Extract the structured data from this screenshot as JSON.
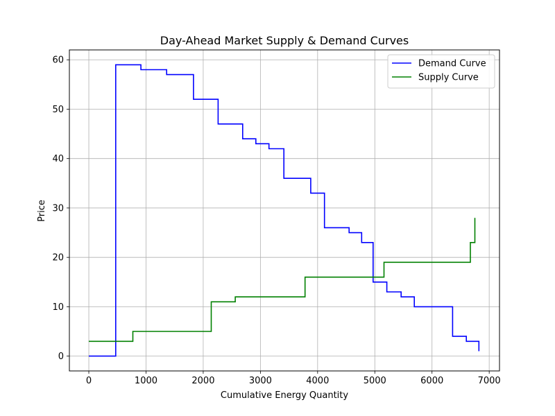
{
  "chart_data": {
    "type": "line",
    "subtype": "step",
    "title": "Day-Ahead Market Supply & Demand Curves",
    "xlabel": "Cumulative Energy Quantity",
    "ylabel": "Price",
    "xlim": [
      -340,
      7180
    ],
    "ylim": [
      -3,
      62
    ],
    "xticks": [
      0,
      1000,
      2000,
      3000,
      4000,
      5000,
      6000,
      7000
    ],
    "yticks": [
      0,
      10,
      20,
      30,
      40,
      50,
      60
    ],
    "grid": true,
    "legend_position": "top-right",
    "series": [
      {
        "name": "Demand Curve",
        "color": "#0000ff",
        "x": [
          0,
          470,
          470,
          910,
          910,
          1360,
          1360,
          1830,
          1830,
          2260,
          2260,
          2690,
          2690,
          2920,
          2920,
          3150,
          3150,
          3410,
          3410,
          3880,
          3880,
          4120,
          4120,
          4550,
          4550,
          4770,
          4770,
          4970,
          4970,
          5210,
          5210,
          5460,
          5460,
          5690,
          5690,
          6360,
          6360,
          6600,
          6600,
          6820,
          6820
        ],
        "y": [
          0,
          0,
          59,
          59,
          58,
          58,
          57,
          57,
          52,
          52,
          47,
          47,
          44,
          44,
          43,
          43,
          42,
          42,
          36,
          36,
          33,
          33,
          26,
          26,
          25,
          25,
          23,
          23,
          15,
          15,
          13,
          13,
          12,
          12,
          10,
          10,
          4,
          4,
          3,
          3,
          1
        ]
      },
      {
        "name": "Supply Curve",
        "color": "#008000",
        "x": [
          0,
          770,
          770,
          2140,
          2140,
          2560,
          2560,
          3780,
          3780,
          5160,
          5160,
          6670,
          6670,
          6750,
          6750
        ],
        "y": [
          3,
          3,
          5,
          5,
          11,
          11,
          12,
          12,
          16,
          16,
          19,
          19,
          23,
          23,
          28
        ]
      }
    ]
  }
}
